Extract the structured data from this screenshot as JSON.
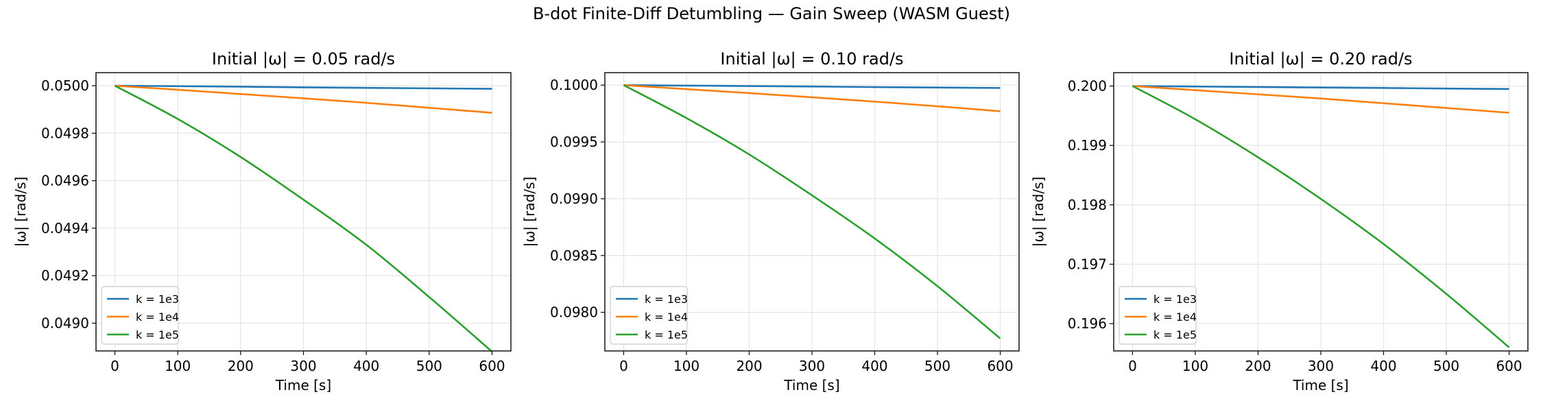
{
  "suptitle": "B-dot Finite-Diff Detumbling — Gain Sweep (WASM Guest)",
  "colors": {
    "k = 1e3": "#1f77b4",
    "k = 1e4": "#ff7f0e",
    "k = 1e5": "#2ca02c"
  },
  "chart_data": [
    {
      "type": "line",
      "title": "Initial |ω| = 0.05 rad/s",
      "xlabel": "Time [s]",
      "ylabel": "|ω| [rad/s]",
      "xlim": [
        -30,
        630
      ],
      "ylim": [
        0.048883,
        0.050055
      ],
      "xticks": [
        0,
        100,
        200,
        300,
        400,
        500,
        600
      ],
      "xtick_labels": [
        "0",
        "100",
        "200",
        "300",
        "400",
        "500",
        "600"
      ],
      "yticks": [
        0.049,
        0.0492,
        0.0494,
        0.0496,
        0.0498,
        0.05
      ],
      "ytick_labels": [
        "0.0490",
        "0.0492",
        "0.0494",
        "0.0496",
        "0.0498",
        "0.0500"
      ],
      "grid": true,
      "legend": "lower-left",
      "x": [
        0,
        100,
        200,
        300,
        400,
        500,
        600
      ],
      "series": [
        {
          "name": "k = 1e3",
          "values": [
            0.05,
            0.049998,
            0.049996,
            0.049993,
            0.049991,
            0.049989,
            0.049987
          ]
        },
        {
          "name": "k = 1e4",
          "values": [
            0.05,
            0.049983,
            0.049965,
            0.049947,
            0.049928,
            0.049907,
            0.049886
          ]
        },
        {
          "name": "k = 1e5",
          "values": [
            0.05,
            0.04986,
            0.0497,
            0.04952,
            0.04933,
            0.04911,
            0.04888
          ]
        }
      ]
    },
    {
      "type": "line",
      "title": "Initial |ω| = 0.10 rad/s",
      "xlabel": "Time [s]",
      "ylabel": "|ω| [rad/s]",
      "xlim": [
        -30,
        630
      ],
      "ylim": [
        0.09766,
        0.10011
      ],
      "xticks": [
        0,
        100,
        200,
        300,
        400,
        500,
        600
      ],
      "xtick_labels": [
        "0",
        "100",
        "200",
        "300",
        "400",
        "500",
        "600"
      ],
      "yticks": [
        0.098,
        0.0985,
        0.099,
        0.0995,
        0.1
      ],
      "ytick_labels": [
        "0.0980",
        "0.0985",
        "0.0990",
        "0.0995",
        "0.1000"
      ],
      "grid": true,
      "legend": "lower-left",
      "x": [
        0,
        100,
        200,
        300,
        400,
        500,
        600
      ],
      "series": [
        {
          "name": "k = 1e3",
          "values": [
            0.1,
            0.099996,
            0.099992,
            0.099988,
            0.099983,
            0.099979,
            0.099975
          ]
        },
        {
          "name": "k = 1e4",
          "values": [
            0.1,
            0.099965,
            0.09993,
            0.099893,
            0.099855,
            0.099814,
            0.09977
          ]
        },
        {
          "name": "k = 1e5",
          "values": [
            0.1,
            0.09971,
            0.09939,
            0.09903,
            0.09865,
            0.09823,
            0.09777
          ]
        }
      ]
    },
    {
      "type": "line",
      "title": "Initial |ω| = 0.20 rad/s",
      "xlabel": "Time [s]",
      "ylabel": "|ω| [rad/s]",
      "xlim": [
        -30,
        630
      ],
      "ylim": [
        0.19554,
        0.200225
      ],
      "xticks": [
        0,
        100,
        200,
        300,
        400,
        500,
        600
      ],
      "xtick_labels": [
        "0",
        "100",
        "200",
        "300",
        "400",
        "500",
        "600"
      ],
      "yticks": [
        0.196,
        0.197,
        0.198,
        0.199,
        0.2
      ],
      "ytick_labels": [
        "0.196",
        "0.197",
        "0.198",
        "0.199",
        "0.200"
      ],
      "grid": true,
      "legend": "lower-left",
      "x": [
        0,
        100,
        200,
        300,
        400,
        500,
        600
      ],
      "series": [
        {
          "name": "k = 1e3",
          "values": [
            0.2,
            0.199992,
            0.199983,
            0.199975,
            0.199967,
            0.199958,
            0.19995
          ]
        },
        {
          "name": "k = 1e4",
          "values": [
            0.2,
            0.19993,
            0.19986,
            0.19979,
            0.19971,
            0.19963,
            0.19955
          ]
        },
        {
          "name": "k = 1e5",
          "values": [
            0.2,
            0.19944,
            0.1988,
            0.1981,
            0.19734,
            0.1965,
            0.1956
          ]
        }
      ]
    }
  ]
}
